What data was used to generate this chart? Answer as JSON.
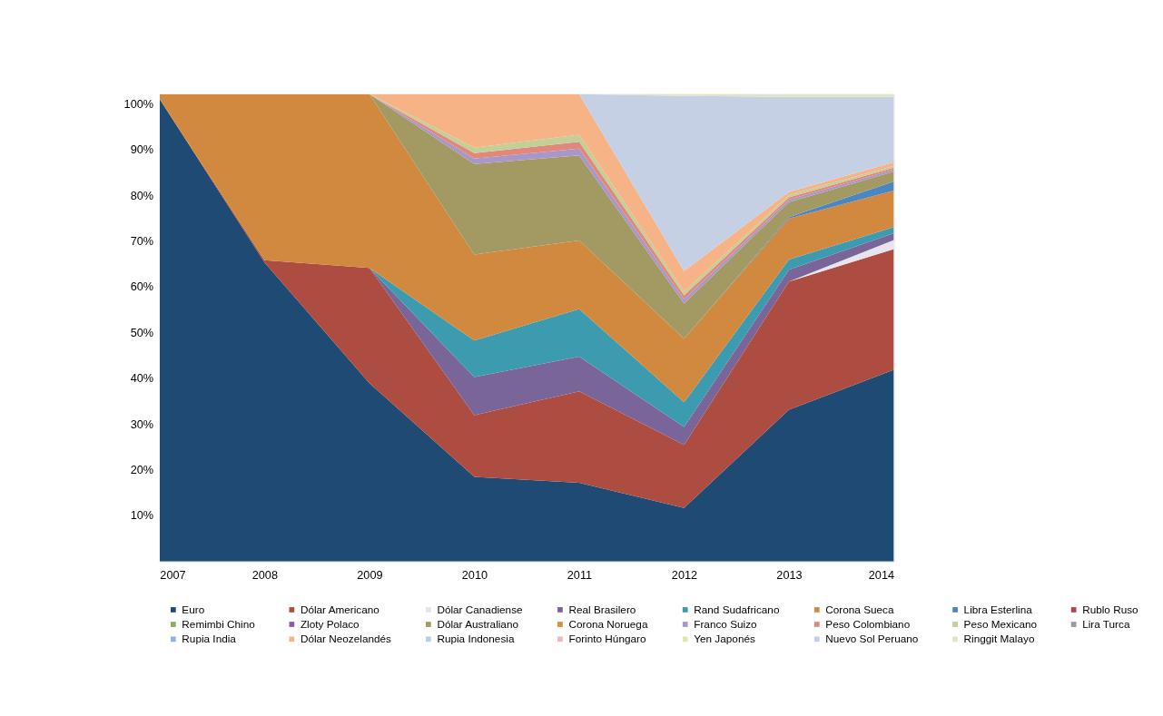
{
  "chart_data": {
    "type": "area",
    "stacked": true,
    "x": [
      2007,
      2008,
      2009,
      2010,
      2011,
      2012,
      2013,
      2014
    ],
    "xlim": [
      2007,
      2014
    ],
    "xticks": [
      2007,
      2008,
      2009,
      2010,
      2011,
      2012,
      2013,
      2014
    ],
    "ylim": [
      0,
      102.2
    ],
    "yticks": [
      {
        "value": 10,
        "label": "10%"
      },
      {
        "value": 20,
        "label": "20%"
      },
      {
        "value": 30,
        "label": "30%"
      },
      {
        "value": 40,
        "label": "40%"
      },
      {
        "value": 50,
        "label": "50%"
      },
      {
        "value": 60,
        "label": "60%"
      },
      {
        "value": 70,
        "label": "70%"
      },
      {
        "value": 80,
        "label": "80%"
      },
      {
        "value": 90,
        "label": "90%"
      },
      {
        "value": 100,
        "label": "100%"
      }
    ],
    "grid": false,
    "legend": "bottom",
    "series": [
      {
        "name": "Euro",
        "color": "#1f4a73",
        "values": [
          101.1,
          65.4,
          39.0,
          18.5,
          17.2,
          11.7,
          33.2,
          41.9
        ]
      },
      {
        "name": "Dólar Americano",
        "color": "#ad4c41",
        "values": [
          0,
          0.5,
          25.2,
          13.5,
          20.0,
          13.8,
          28.0,
          26.4
        ]
      },
      {
        "name": "Dólar Canadiense",
        "color": "#e8e4ee",
        "values": [
          null,
          null,
          null,
          null,
          null,
          null,
          0,
          2.0
        ]
      },
      {
        "name": "Real Brasilero",
        "color": "#7a6599",
        "values": [
          null,
          null,
          0,
          8.3,
          7.6,
          3.9,
          2.6,
          1.5
        ]
      },
      {
        "name": "Rand Sudafricano",
        "color": "#3d9bb0",
        "values": [
          null,
          null,
          0,
          8.0,
          10.4,
          5.4,
          2.2,
          1.3
        ]
      },
      {
        "name": "Corona Sueca",
        "color": "#d1893f",
        "values": [
          1.1,
          36.3,
          38.0,
          18.8,
          15.0,
          13.9,
          9.0,
          8.0
        ]
      },
      {
        "name": "Libra Esterlina",
        "color": "#4a86c2",
        "values": [
          null,
          null,
          null,
          null,
          null,
          0,
          0.3,
          2.0
        ]
      },
      {
        "name": "Rublo Ruso",
        "color": "#b8434d",
        "values": [
          null,
          null,
          null,
          null,
          null,
          null,
          null,
          null
        ]
      },
      {
        "name": "Remimbi Chino",
        "color": "#8fae57",
        "values": [
          null,
          null,
          null,
          null,
          null,
          null,
          null,
          null
        ]
      },
      {
        "name": "Zloty Polaco",
        "color": "#7f62a8",
        "values": [
          null,
          null,
          null,
          null,
          null,
          null,
          null,
          null
        ]
      },
      {
        "name": "Dólar Australiano",
        "color": "#a39a63",
        "values": [
          null,
          null,
          0,
          19.8,
          18.6,
          7.7,
          3.3,
          2.2
        ]
      },
      {
        "name": "Corona Noruega",
        "color": "#e08a3b",
        "values": [
          null,
          null,
          null,
          null,
          null,
          null,
          null,
          null
        ]
      },
      {
        "name": "Franco Suizo",
        "color": "#a897c9",
        "values": [
          null,
          null,
          0,
          1.2,
          1.5,
          0.9,
          0.5,
          0.4
        ]
      },
      {
        "name": "Peso Colombiano",
        "color": "#e0897a",
        "values": [
          null,
          null,
          0,
          1.2,
          1.5,
          0.9,
          0.5,
          0.4
        ]
      },
      {
        "name": "Peso Mexicano",
        "color": "#c2cf96",
        "values": [
          null,
          null,
          0,
          1.2,
          1.5,
          0.8,
          0.5,
          0.4
        ]
      },
      {
        "name": "Lira Turca",
        "color": "#9a9ba8",
        "values": [
          null,
          null,
          null,
          null,
          null,
          null,
          null,
          null
        ]
      },
      {
        "name": "Rupia India",
        "color": "#8eb5dd",
        "values": [
          null,
          null,
          null,
          null,
          null,
          null,
          null,
          null
        ]
      },
      {
        "name": "Dólar Neozelandés",
        "color": "#f6b386",
        "values": [
          null,
          null,
          0,
          11.7,
          8.9,
          4.5,
          0.7,
          0.8
        ]
      },
      {
        "name": "Rupia Indonesia",
        "color": "#b6d3e0",
        "values": [
          null,
          null,
          null,
          null,
          null,
          null,
          null,
          null
        ]
      },
      {
        "name": "Forinto Húngaro",
        "color": "#f0b8bb",
        "values": [
          null,
          null,
          null,
          null,
          null,
          null,
          null,
          null
        ]
      },
      {
        "name": "Yen Japonés",
        "color": "#dfe8b4",
        "values": [
          null,
          null,
          null,
          null,
          null,
          null,
          null,
          null
        ]
      },
      {
        "name": "Nuevo Sol Peruano",
        "color": "#c5d0e4",
        "values": [
          null,
          null,
          null,
          null,
          0,
          38.3,
          20.8,
          14.3
        ]
      },
      {
        "name": "Ringgit Malayo",
        "color": "#dde6c4",
        "values": [
          null,
          null,
          null,
          null,
          0,
          0.4,
          0.6,
          0.6
        ]
      }
    ]
  }
}
